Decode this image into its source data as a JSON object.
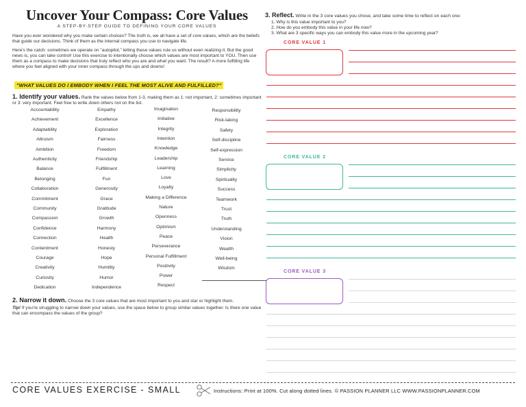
{
  "header": {
    "title": "Uncover Your Compass: Core Values",
    "subtitle": "A STEP-BY-STEP GUIDE TO DEFINING YOUR CORE VALUES"
  },
  "intro": {
    "p1": "Have you ever wondered why you make certain choices? The truth is, we all have a set of core values, which are the beliefs that guide our decisions. Think of them as the internal compass you use to navigate life.",
    "p2": "Here's the catch: sometimes we operate on \"autopilot,\" letting these values rule us without even realizing it. But the good news is, you can take control! Use this exercise to intentionally choose which values are most important to YOU. Then use them as a compass to make decisions that truly reflect who you are and what you want. The result? A more fulfilling life where you feel aligned with your inner compass through the ups and downs!",
    "quote": "\"WHAT VALUES DO I EMBODY WHEN I FEEL THE MOST ALIVE AND FULFILLED?\""
  },
  "step1": {
    "heading": "1. Identify your values.",
    "text": "Rank the values below from 1-3, making them as 1: not important, 2: sometimes important or 3: very important. Feel free to write down others not on the list."
  },
  "values": {
    "col1": [
      "Accountability",
      "Achievement",
      "Adaptability",
      "Altruism",
      "Ambition",
      "Authenticity",
      "Balance",
      "Belonging",
      "Collaboration",
      "Commitment",
      "Community",
      "Compassion",
      "Confidence",
      "Connection",
      "Contentment",
      "Courage",
      "Creativity",
      "Curiosity",
      "Dedication"
    ],
    "col2": [
      "Empathy",
      "Excellence",
      "Exploration",
      "Fairness",
      "Freedom",
      "Friendship",
      "Fulfillment",
      "Fun",
      "Generosity",
      "Grace",
      "Gratitude",
      "Growth",
      "Harmony",
      "Health",
      "Honesty",
      "Hope",
      "Humility",
      "Humor",
      "Independence"
    ],
    "col3": [
      "Imagination",
      "Initiative",
      "Integrity",
      "Intention",
      "Knowledge",
      "Leadership",
      "Learning",
      "Love",
      "Loyalty",
      "Making a Difference",
      "Nature",
      "Openness",
      "Optimism",
      "Peace",
      "Perseverance",
      "Personal Fulfillment",
      "Positivity",
      "Power",
      "Respect"
    ],
    "col4": [
      "Responsibility",
      "Risk-taking",
      "Safety",
      "Self-discipline",
      "Self-expression",
      "Service",
      "Simplicity",
      "Spirituality",
      "Success",
      "Teamwork",
      "Trust",
      "Truth",
      "Understanding",
      "Vision",
      "Wealth",
      "Well-being",
      "Wisdom"
    ]
  },
  "step2": {
    "heading": "2. Narrow it down.",
    "text": "Choose the 3 core values that are most important to you and star or highlight them.",
    "tip_label": "Tip!",
    "tip_text": "If you're struggling to narrow down your values, use the space below to group similar values together. Is there one value that can encompass the values of the group?"
  },
  "step3": {
    "heading": "3. Reflect.",
    "text": "Write in the 3 core values you chose, and take some time to reflect on each one:",
    "questions": [
      "1. Why is this value important to you?",
      "2. How do you embody this value in your life now?",
      "3. What are 3 specific ways you can embody this value more in the upcoming year?"
    ]
  },
  "core_values": [
    {
      "label": "CORE VALUE 1",
      "color": "#e0373b"
    },
    {
      "label": "CORE VALUE 2",
      "color": "#3cb79a"
    },
    {
      "label": "CORE VALUE 3",
      "color": "#a056c2"
    }
  ],
  "footer": {
    "title": "CORE VALUES EXERCISE - SMALL",
    "info": "Instructions: Print at 100%.  Cut along dotted lines.  © PASSION PLANNER LLC   WWW.PASSIONPLANNER.COM"
  }
}
